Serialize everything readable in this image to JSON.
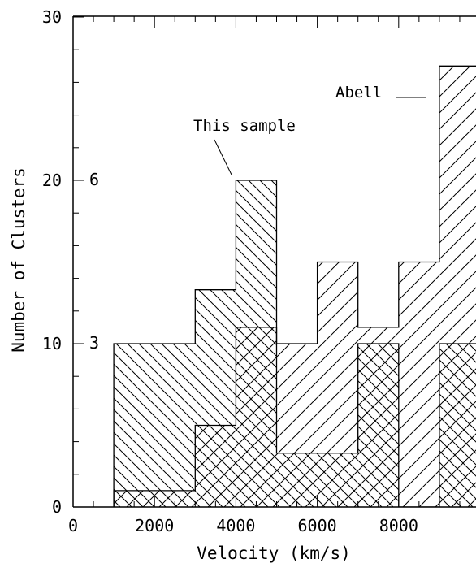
{
  "chart_data": {
    "type": "bar",
    "title": "",
    "xlabel": "Velocity (km/s)",
    "ylabel": "Number of Clusters",
    "xlim": [
      0,
      9900
    ],
    "ylim": [
      0,
      30
    ],
    "xticks": [
      0,
      2000,
      4000,
      6000,
      8000
    ],
    "yticks": [
      0,
      10,
      20,
      30
    ],
    "right_axis_labels": [
      {
        "value": 10,
        "label": "3"
      },
      {
        "value": 20,
        "label": "6"
      }
    ],
    "grid": false,
    "bin_width": 1000,
    "series": [
      {
        "name": "Abell",
        "pattern": "diagonal-up",
        "bins": [
          {
            "x0": 1000,
            "x1": 2000,
            "value": 1
          },
          {
            "x0": 2000,
            "x1": 3000,
            "value": 1
          },
          {
            "x0": 3000,
            "x1": 4000,
            "value": 5
          },
          {
            "x0": 4000,
            "x1": 5000,
            "value": 11
          },
          {
            "x0": 5000,
            "x1": 6000,
            "value": 10
          },
          {
            "x0": 6000,
            "x1": 7000,
            "value": 15
          },
          {
            "x0": 7000,
            "x1": 8000,
            "value": 11
          },
          {
            "x0": 8000,
            "x1": 9000,
            "value": 15
          },
          {
            "x0": 9000,
            "x1": 10000,
            "value": 27
          }
        ]
      },
      {
        "name": "This sample",
        "pattern": "diagonal-down",
        "bins": [
          {
            "x0": 1000,
            "x1": 2000,
            "value": 10
          },
          {
            "x0": 2000,
            "x1": 3000,
            "value": 10
          },
          {
            "x0": 3000,
            "x1": 4000,
            "value": 13.3
          },
          {
            "x0": 4000,
            "x1": 5000,
            "value": 20
          },
          {
            "x0": 5000,
            "x1": 6000,
            "value": 3.3
          },
          {
            "x0": 6000,
            "x1": 7000,
            "value": 3.3
          },
          {
            "x0": 7000,
            "x1": 8000,
            "value": 10
          },
          {
            "x0": 8000,
            "x1": 9000,
            "value": 0
          },
          {
            "x0": 9000,
            "x1": 10000,
            "value": 10
          }
        ]
      }
    ],
    "annotations": [
      {
        "text": "Abell"
      },
      {
        "text": "This sample"
      }
    ]
  }
}
